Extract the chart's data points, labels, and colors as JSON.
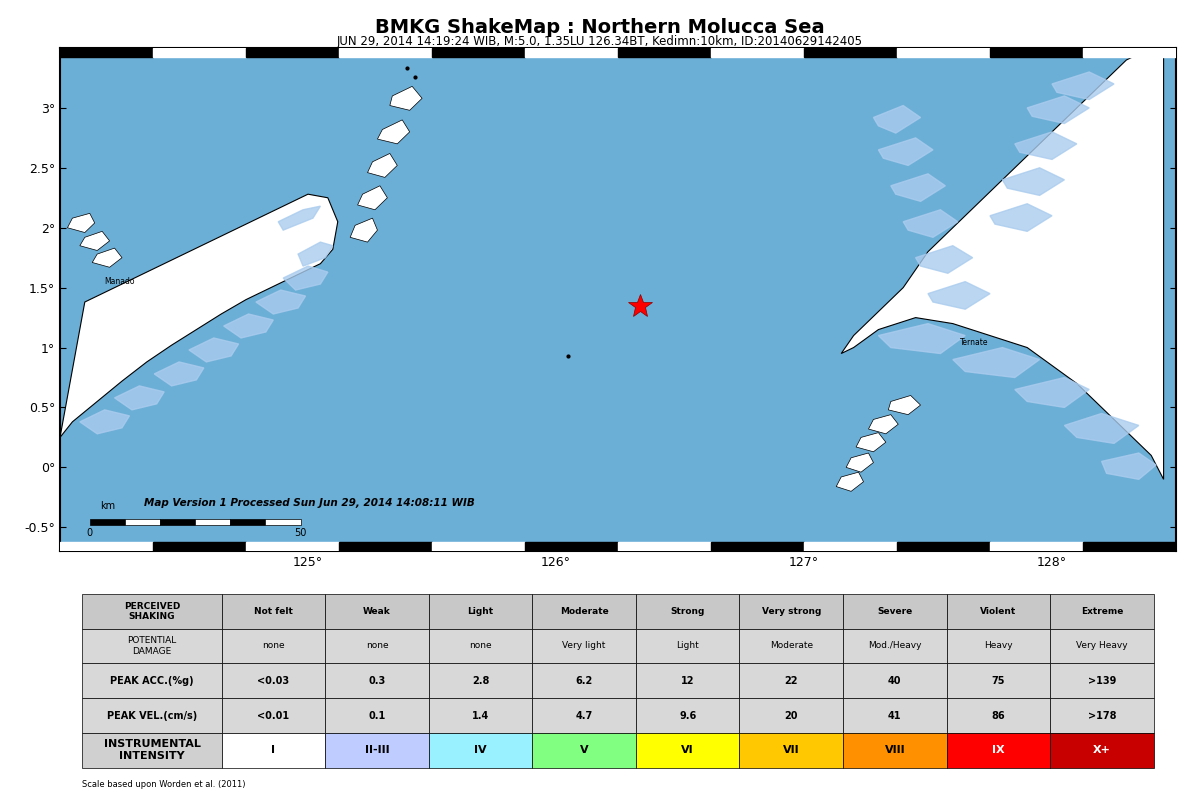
{
  "title": "BMKG ShakeMap : Northern Molucca Sea",
  "subtitle": "JUN 29, 2014 14:19:24 WIB, M:5.0, 1.35LU 126.34BT, Kedimn:10km, ID:20140629142405",
  "map_version_text": "Map Version 1 Processed Sun Jun 29, 2014 14:08:11 WIB",
  "scale_text": "Scale based upon Worden et al. (2011)",
  "epicenter_lon": 126.34,
  "epicenter_lat": 1.35,
  "map_xlim": [
    124.0,
    128.5
  ],
  "map_ylim": [
    -0.7,
    3.5
  ],
  "ocean_color": "#6BAED6",
  "land_color": "#FFFFFF",
  "snow_color": "#AACCEE",
  "land_outline": "#000000",
  "table_headers": [
    "PERCEIVED\nSHAKING",
    "Not felt",
    "Weak",
    "Light",
    "Moderate",
    "Strong",
    "Very strong",
    "Severe",
    "Violent",
    "Extreme"
  ],
  "row_potential_damage": [
    "POTENTIAL\nDAMAGE",
    "none",
    "none",
    "none",
    "Very light",
    "Light",
    "Moderate",
    "Mod./Heavy",
    "Heavy",
    "Very Heavy"
  ],
  "row_peak_acc": [
    "PEAK ACC.(%g)",
    "<0.03",
    "0.3",
    "2.8",
    "6.2",
    "12",
    "22",
    "40",
    "75",
    ">139"
  ],
  "row_peak_vel": [
    "PEAK VEL.(cm/s)",
    "<0.01",
    "0.1",
    "1.4",
    "4.7",
    "9.6",
    "20",
    "41",
    "86",
    ">178"
  ],
  "row_intensity": [
    "INSTRUMENTAL\nINTENSITY",
    "I",
    "II-III",
    "IV",
    "V",
    "VI",
    "VII",
    "VIII",
    "IX",
    "X+"
  ],
  "intensity_colors_all": [
    "#D0D0D0",
    "#FFFFFF",
    "#BFCCFF",
    "#99F0FF",
    "#80FF80",
    "#FFFF00",
    "#FFC800",
    "#FF9100",
    "#FF0000",
    "#C80000"
  ],
  "intensity_text_colors_all": [
    "#000000",
    "#000000",
    "#000000",
    "#000000",
    "#000000",
    "#000000",
    "#000000",
    "#000000",
    "#FFFFFF",
    "#FFFFFF"
  ]
}
